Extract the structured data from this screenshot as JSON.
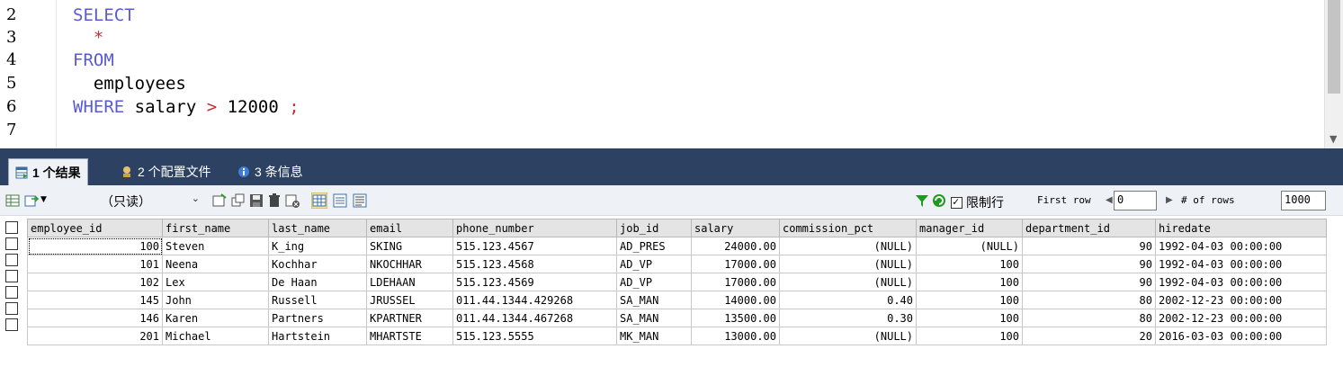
{
  "editor": {
    "line_numbers": [
      "2",
      "3",
      "4",
      "5",
      "6",
      "7"
    ],
    "lines": [
      [
        {
          "t": "SELECT",
          "c": "kw"
        }
      ],
      [
        {
          "t": "  ",
          "c": ""
        },
        {
          "t": "*",
          "c": "op"
        }
      ],
      [
        {
          "t": "FROM",
          "c": "kw"
        }
      ],
      [
        {
          "t": "  employees",
          "c": ""
        }
      ],
      [
        {
          "t": "WHERE",
          "c": "kw"
        },
        {
          "t": " salary ",
          "c": ""
        },
        {
          "t": ">",
          "c": "op"
        },
        {
          "t": " 12000 ",
          "c": ""
        },
        {
          "t": ";",
          "c": "op"
        }
      ],
      [
        {
          "t": "",
          "c": ""
        }
      ]
    ]
  },
  "tabs": [
    {
      "label": "1 个结果",
      "icon": "result-grid-icon"
    },
    {
      "label": "2 个配置文件",
      "icon": "profile-icon"
    },
    {
      "label": "3 条信息",
      "icon": "info-icon"
    }
  ],
  "toolbar": {
    "readonly_label": "（只读）",
    "limit_label": "限制行",
    "first_row_label": "First row",
    "first_row_value": "0",
    "rows_label": "# of rows",
    "rows_value": "1000"
  },
  "grid": {
    "columns": [
      "employee_id",
      "first_name",
      "last_name",
      "email",
      "phone_number",
      "job_id",
      "salary",
      "commission_pct",
      "manager_id",
      "department_id",
      "hiredate"
    ],
    "rows": [
      [
        "100",
        "Steven",
        "K_ing",
        "SKING",
        "515.123.4567",
        "AD_PRES",
        "24000.00",
        "(NULL)",
        "(NULL)",
        "90",
        "1992-04-03 00:00:00"
      ],
      [
        "101",
        "Neena",
        "Kochhar",
        "NKOCHHAR",
        "515.123.4568",
        "AD_VP",
        "17000.00",
        "(NULL)",
        "100",
        "90",
        "1992-04-03 00:00:00"
      ],
      [
        "102",
        "Lex",
        "De Haan",
        "LDEHAAN",
        "515.123.4569",
        "AD_VP",
        "17000.00",
        "(NULL)",
        "100",
        "90",
        "1992-04-03 00:00:00"
      ],
      [
        "145",
        "John",
        "Russell",
        "JRUSSEL",
        "011.44.1344.429268",
        "SA_MAN",
        "14000.00",
        "0.40",
        "100",
        "80",
        "2002-12-23 00:00:00"
      ],
      [
        "146",
        "Karen",
        "Partners",
        "KPARTNER",
        "011.44.1344.467268",
        "SA_MAN",
        "13500.00",
        "0.30",
        "100",
        "80",
        "2002-12-23 00:00:00"
      ],
      [
        "201",
        "Michael",
        "Hartstein",
        "MHARTSTE",
        "515.123.5555",
        "MK_MAN",
        "13000.00",
        "(NULL)",
        "100",
        "20",
        "2016-03-03 00:00:00"
      ]
    ]
  }
}
